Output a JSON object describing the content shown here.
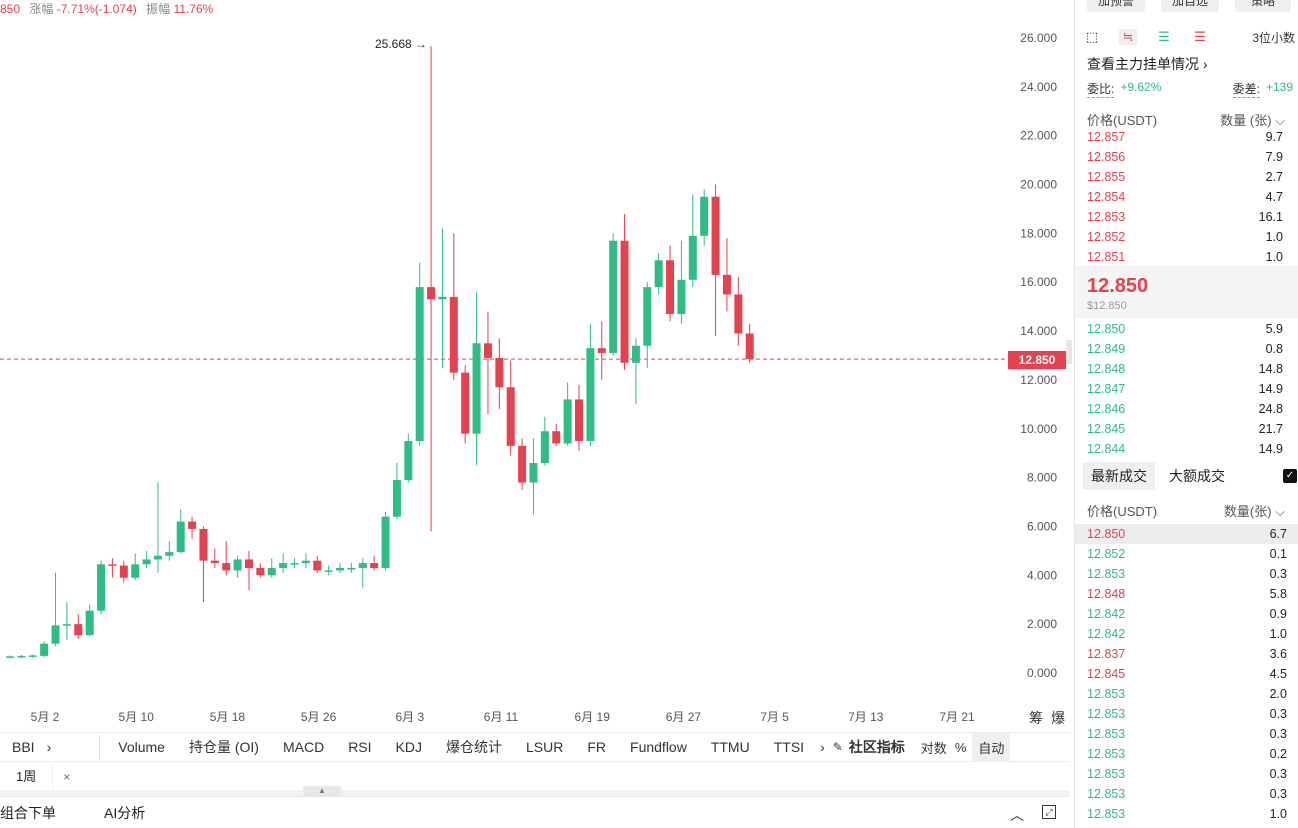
{
  "header": {
    "price_fragment": "850",
    "change_label": "涨幅",
    "change_value": "-7.71%(-1.074)",
    "amplitude_label": "振幅",
    "amplitude_value": "11.76%"
  },
  "chart_data": {
    "type": "candlestick",
    "y_ticks": [
      "26.000",
      "24.000",
      "22.000",
      "20.000",
      "18.000",
      "16.000",
      "14.000",
      "12.000",
      "10.000",
      "8.000",
      "6.000",
      "4.000",
      "2.000",
      "0.000"
    ],
    "x_ticks": [
      "5月 2",
      "5月 10",
      "5月 18",
      "5月 26",
      "6月 3",
      "6月 11",
      "6月 19",
      "6月 27",
      "7月 5",
      "7月 13",
      "7月 21"
    ],
    "ylim": [
      0,
      26
    ],
    "max_annotation": "25.668",
    "current_price": 12.85,
    "current_price_label": "12.850",
    "axis_extra": [
      "筹",
      "爆"
    ],
    "candles": [
      {
        "o": 0.62,
        "c": 0.68,
        "h": 0.72,
        "l": 0.6
      },
      {
        "o": 0.64,
        "c": 0.7,
        "h": 0.74,
        "l": 0.6
      },
      {
        "o": 0.66,
        "c": 0.72,
        "h": 0.76,
        "l": 0.62
      },
      {
        "o": 0.7,
        "c": 1.2,
        "h": 1.3,
        "l": 0.65
      },
      {
        "o": 1.2,
        "c": 1.95,
        "h": 4.1,
        "l": 1.1
      },
      {
        "o": 1.95,
        "c": 2.0,
        "h": 2.9,
        "l": 1.35
      },
      {
        "o": 2.0,
        "c": 1.55,
        "h": 2.4,
        "l": 1.4
      },
      {
        "o": 1.55,
        "c": 2.55,
        "h": 2.8,
        "l": 1.5
      },
      {
        "o": 2.55,
        "c": 4.45,
        "h": 4.6,
        "l": 2.4
      },
      {
        "o": 4.45,
        "c": 4.4,
        "h": 4.7,
        "l": 3.9
      },
      {
        "o": 4.4,
        "c": 3.9,
        "h": 4.6,
        "l": 3.7
      },
      {
        "o": 3.9,
        "c": 4.45,
        "h": 4.9,
        "l": 3.8
      },
      {
        "o": 4.45,
        "c": 4.65,
        "h": 5.0,
        "l": 4.3
      },
      {
        "o": 4.65,
        "c": 4.8,
        "h": 7.8,
        "l": 4.1
      },
      {
        "o": 4.8,
        "c": 4.95,
        "h": 5.4,
        "l": 4.6
      },
      {
        "o": 4.95,
        "c": 6.2,
        "h": 6.7,
        "l": 4.9
      },
      {
        "o": 6.2,
        "c": 5.9,
        "h": 6.4,
        "l": 5.5
      },
      {
        "o": 5.9,
        "c": 4.6,
        "h": 6.0,
        "l": 2.9
      },
      {
        "o": 4.6,
        "c": 4.5,
        "h": 5.1,
        "l": 4.3
      },
      {
        "o": 4.5,
        "c": 4.2,
        "h": 5.4,
        "l": 4.0
      },
      {
        "o": 4.2,
        "c": 4.65,
        "h": 4.8,
        "l": 3.9
      },
      {
        "o": 4.65,
        "c": 4.3,
        "h": 5.0,
        "l": 3.4
      },
      {
        "o": 4.3,
        "c": 4.0,
        "h": 4.5,
        "l": 3.9
      },
      {
        "o": 4.0,
        "c": 4.3,
        "h": 4.7,
        "l": 3.9
      },
      {
        "o": 4.3,
        "c": 4.5,
        "h": 4.9,
        "l": 4.1
      },
      {
        "o": 4.5,
        "c": 4.5,
        "h": 4.7,
        "l": 4.3
      },
      {
        "o": 4.5,
        "c": 4.6,
        "h": 4.9,
        "l": 4.3
      },
      {
        "o": 4.6,
        "c": 4.2,
        "h": 4.8,
        "l": 4.1
      },
      {
        "o": 4.2,
        "c": 4.2,
        "h": 4.4,
        "l": 4.0
      },
      {
        "o": 4.2,
        "c": 4.3,
        "h": 4.5,
        "l": 4.1
      },
      {
        "o": 4.3,
        "c": 4.3,
        "h": 4.5,
        "l": 4.1
      },
      {
        "o": 4.3,
        "c": 4.5,
        "h": 4.7,
        "l": 3.5
      },
      {
        "o": 4.5,
        "c": 4.3,
        "h": 4.8,
        "l": 4.2
      },
      {
        "o": 4.3,
        "c": 6.4,
        "h": 6.6,
        "l": 4.2
      },
      {
        "o": 6.4,
        "c": 7.9,
        "h": 8.6,
        "l": 6.3
      },
      {
        "o": 7.9,
        "c": 9.5,
        "h": 9.8,
        "l": 7.8
      },
      {
        "o": 9.5,
        "c": 15.8,
        "h": 16.8,
        "l": 9.3
      },
      {
        "o": 15.8,
        "c": 15.3,
        "h": 25.668,
        "l": 5.8
      },
      {
        "o": 15.3,
        "c": 15.4,
        "h": 18.2,
        "l": 12.5
      },
      {
        "o": 15.4,
        "c": 12.3,
        "h": 18.0,
        "l": 12.0
      },
      {
        "o": 12.3,
        "c": 9.8,
        "h": 12.6,
        "l": 9.4
      },
      {
        "o": 9.8,
        "c": 13.5,
        "h": 15.6,
        "l": 8.5
      },
      {
        "o": 13.5,
        "c": 12.9,
        "h": 14.8,
        "l": 10.6
      },
      {
        "o": 12.9,
        "c": 11.7,
        "h": 13.7,
        "l": 10.8
      },
      {
        "o": 11.7,
        "c": 9.3,
        "h": 12.8,
        "l": 8.9
      },
      {
        "o": 9.3,
        "c": 7.8,
        "h": 9.6,
        "l": 7.5
      },
      {
        "o": 7.8,
        "c": 8.6,
        "h": 9.6,
        "l": 6.5
      },
      {
        "o": 8.6,
        "c": 9.9,
        "h": 10.5,
        "l": 8.5
      },
      {
        "o": 9.9,
        "c": 9.4,
        "h": 10.2,
        "l": 9.3
      },
      {
        "o": 9.4,
        "c": 11.2,
        "h": 11.9,
        "l": 9.3
      },
      {
        "o": 11.2,
        "c": 9.5,
        "h": 11.8,
        "l": 9.1
      },
      {
        "o": 9.5,
        "c": 13.3,
        "h": 14.3,
        "l": 9.3
      },
      {
        "o": 13.3,
        "c": 13.1,
        "h": 14.4,
        "l": 12.0
      },
      {
        "o": 13.1,
        "c": 17.7,
        "h": 18.0,
        "l": 13.0
      },
      {
        "o": 17.7,
        "c": 12.7,
        "h": 18.8,
        "l": 12.4
      },
      {
        "o": 12.7,
        "c": 13.4,
        "h": 13.7,
        "l": 11.0
      },
      {
        "o": 13.4,
        "c": 15.8,
        "h": 16.0,
        "l": 12.5
      },
      {
        "o": 15.8,
        "c": 16.9,
        "h": 17.2,
        "l": 15.5
      },
      {
        "o": 16.9,
        "c": 14.7,
        "h": 17.5,
        "l": 14.4
      },
      {
        "o": 14.7,
        "c": 16.1,
        "h": 17.7,
        "l": 14.3
      },
      {
        "o": 16.1,
        "c": 17.9,
        "h": 19.6,
        "l": 15.8
      },
      {
        "o": 17.9,
        "c": 19.5,
        "h": 19.8,
        "l": 17.5
      },
      {
        "o": 19.5,
        "c": 16.3,
        "h": 20.0,
        "l": 13.8
      },
      {
        "o": 16.3,
        "c": 15.5,
        "h": 17.8,
        "l": 14.8
      },
      {
        "o": 15.5,
        "c": 13.9,
        "h": 16.2,
        "l": 13.4
      },
      {
        "o": 13.9,
        "c": 12.85,
        "h": 14.3,
        "l": 12.7
      }
    ]
  },
  "indicators": {
    "bbi": "BBI",
    "bbi_arrow": "›",
    "items": [
      "Volume",
      "持仓量 (OI)",
      "MACD",
      "RSI",
      "KDJ",
      "爆仓统计",
      "LSUR",
      "FR",
      "Fundflow",
      "TTMU",
      "TTSI"
    ],
    "more_arrow": "›",
    "community_label": "社区指标",
    "log_label": "对数",
    "percent_label": "%",
    "auto_label": "自动"
  },
  "timeframe": {
    "label": "1周",
    "close": "×"
  },
  "bottom": {
    "combo_order": "组合下单",
    "ai_analysis": "AI分析"
  },
  "right_panel": {
    "top_buttons": [
      "加预警",
      "加自选",
      "策略"
    ],
    "decimal_label": "3位小数",
    "depth_link": "查看主力挂单情况 ›",
    "weibi_label": "委比:",
    "weibi_value": "+9.62%",
    "weicha_label": "委差:",
    "weicha_value": "+139",
    "ob_price_header": "价格(USDT)",
    "ob_qty_header": "数量 (张) ⌵",
    "asks": [
      {
        "p": "12.857",
        "q": "9.7"
      },
      {
        "p": "12.856",
        "q": "7.9"
      },
      {
        "p": "12.855",
        "q": "2.7"
      },
      {
        "p": "12.854",
        "q": "4.7"
      },
      {
        "p": "12.853",
        "q": "16.1"
      },
      {
        "p": "12.852",
        "q": "1.0"
      },
      {
        "p": "12.851",
        "q": "1.0"
      }
    ],
    "mid_price": "12.850",
    "mid_usd": "$12.850",
    "bids": [
      {
        "p": "12.850",
        "q": "5.9"
      },
      {
        "p": "12.849",
        "q": "0.8"
      },
      {
        "p": "12.848",
        "q": "14.8"
      },
      {
        "p": "12.847",
        "q": "14.9"
      },
      {
        "p": "12.846",
        "q": "24.8"
      },
      {
        "p": "12.845",
        "q": "21.7"
      },
      {
        "p": "12.844",
        "q": "14.9"
      }
    ],
    "tab_latest": "最新成交",
    "tab_large": "大额成交",
    "check_mark": "✓",
    "tr_price_header": "价格(USDT)",
    "tr_qty_header": "数量(张) ⌵",
    "trades": [
      {
        "p": "12.850",
        "q": "6.7",
        "side": "sell"
      },
      {
        "p": "12.852",
        "q": "0.1",
        "side": "buy"
      },
      {
        "p": "12.853",
        "q": "0.3",
        "side": "buy"
      },
      {
        "p": "12.848",
        "q": "5.8",
        "side": "sell"
      },
      {
        "p": "12.842",
        "q": "0.9",
        "side": "buy"
      },
      {
        "p": "12.842",
        "q": "1.0",
        "side": "buy"
      },
      {
        "p": "12.837",
        "q": "3.6",
        "side": "sell"
      },
      {
        "p": "12.845",
        "q": "4.5",
        "side": "sell"
      },
      {
        "p": "12.853",
        "q": "2.0",
        "side": "buy"
      },
      {
        "p": "12.853",
        "q": "0.3",
        "side": "buy"
      },
      {
        "p": "12.853",
        "q": "0.3",
        "side": "buy"
      },
      {
        "p": "12.853",
        "q": "0.2",
        "side": "buy"
      },
      {
        "p": "12.853",
        "q": "0.3",
        "side": "buy"
      },
      {
        "p": "12.853",
        "q": "0.3",
        "side": "buy"
      },
      {
        "p": "12.853",
        "q": "1.0",
        "side": "buy"
      }
    ]
  },
  "colors": {
    "up": "#2ebd85",
    "down": "#e5414f"
  }
}
